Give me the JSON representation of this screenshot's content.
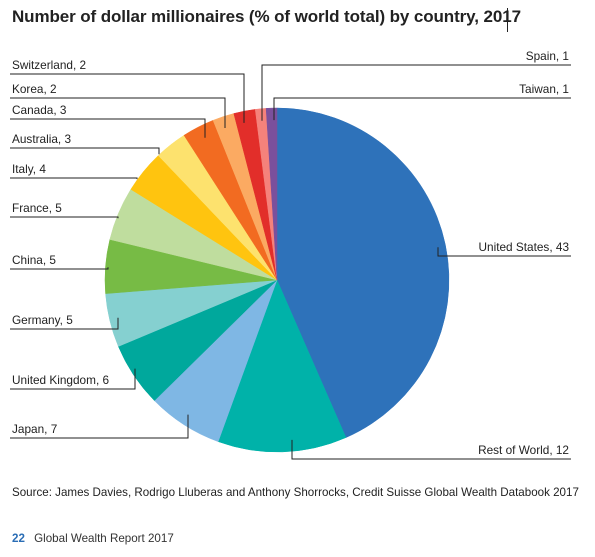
{
  "title": "Number of dollar millionaires (% of world total) by country, 2017",
  "chart_data": {
    "type": "pie",
    "title": "Number of dollar millionaires (% of world total) by country, 2017",
    "unit": "% of world total",
    "slices": [
      {
        "label": "United States, 43",
        "name": "United States",
        "value": 43,
        "color": "#2e72ba"
      },
      {
        "label": "Rest of World, 12",
        "name": "Rest of World",
        "value": 12,
        "color": "#00b2a9"
      },
      {
        "label": "Japan, 7",
        "name": "Japan",
        "value": 7,
        "color": "#7fb7e4"
      },
      {
        "label": "United Kingdom, 6",
        "name": "United Kingdom",
        "value": 6,
        "color": "#00a89c"
      },
      {
        "label": "Germany, 5",
        "name": "Germany",
        "value": 5,
        "color": "#85d0d0"
      },
      {
        "label": "China, 5",
        "name": "China",
        "value": 5,
        "color": "#77bb45"
      },
      {
        "label": "France, 5",
        "name": "France",
        "value": 5,
        "color": "#bfdd9e"
      },
      {
        "label": "Italy, 4",
        "name": "Italy",
        "value": 4,
        "color": "#ffc40f"
      },
      {
        "label": "Australia, 3",
        "name": "Australia",
        "value": 3,
        "color": "#fde26e"
      },
      {
        "label": "Canada, 3",
        "name": "Canada",
        "value": 3,
        "color": "#f26b21"
      },
      {
        "label": "Korea, 2",
        "name": "Korea",
        "value": 2,
        "color": "#fbaa62"
      },
      {
        "label": "Switzerland, 2",
        "name": "Switzerland",
        "value": 2,
        "color": "#e22e2a"
      },
      {
        "label": "Spain, 1",
        "name": "Spain",
        "value": 1,
        "color": "#f5827b"
      },
      {
        "label": "Taiwan, 1",
        "name": "Taiwan",
        "value": 1,
        "color": "#7b509c"
      }
    ]
  },
  "source": "Source: James Davies, Rodrigo Lluberas and Anthony Shorrocks, Credit Suisse Global Wealth Databook 2017",
  "footer": {
    "page_number": "22",
    "report_name": "Global Wealth Report 2017"
  }
}
